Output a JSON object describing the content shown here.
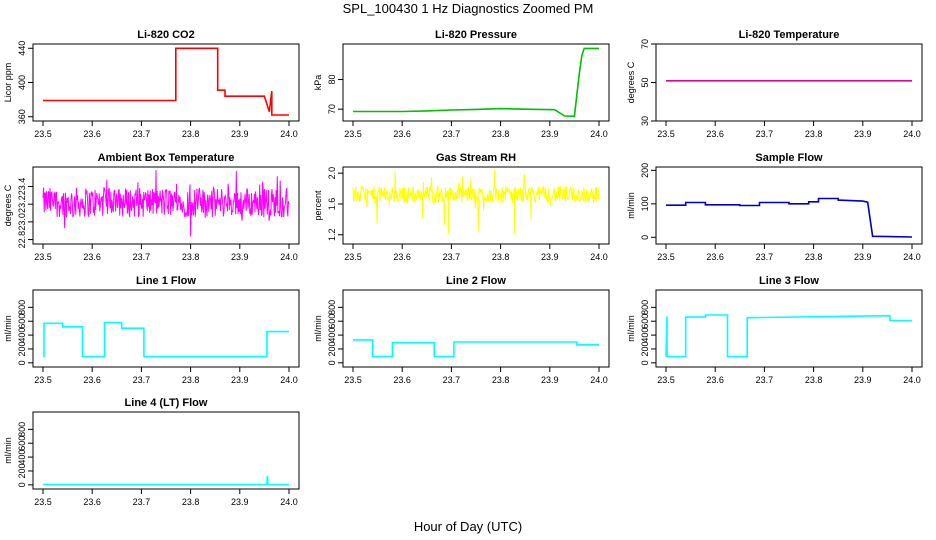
{
  "title": "SPL_100430  1 Hz Diagnostics Zoomed PM",
  "xlabel": "Hour of Day (UTC)",
  "chart_data": [
    {
      "type": "line",
      "title": "Li-820 CO2",
      "ylabel": "Licor ppm",
      "color": "#ff0000",
      "xlim": [
        23.5,
        24.0
      ],
      "xticks": [
        "23.5",
        "23.6",
        "23.7",
        "23.8",
        "23.9",
        "24.0"
      ],
      "ylim": [
        355,
        445
      ],
      "yticks": [
        "360",
        "400",
        "440"
      ],
      "yticks_val": [
        360,
        400,
        440
      ],
      "series": [
        {
          "x": [
            23.5,
            23.77,
            23.77,
            23.855,
            23.855,
            23.87,
            23.87,
            23.95,
            23.96,
            23.965,
            23.965,
            24.0
          ],
          "y": [
            379,
            379,
            440,
            440,
            391,
            391,
            384,
            384,
            366,
            390,
            362,
            362
          ]
        }
      ]
    },
    {
      "type": "line",
      "title": "Li-820 Pressure",
      "ylabel": "kPa",
      "color": "#00c000",
      "xlim": [
        23.5,
        24.0
      ],
      "xticks": [
        "23.5",
        "23.6",
        "23.7",
        "23.8",
        "23.9",
        "24.0"
      ],
      "ylim": [
        66,
        92
      ],
      "yticks": [
        "70",
        "80"
      ],
      "yticks_val": [
        70,
        80
      ],
      "series": [
        {
          "x": [
            23.5,
            23.6,
            23.65,
            23.7,
            23.75,
            23.8,
            23.85,
            23.91,
            23.93,
            23.95,
            23.955,
            23.96,
            23.965,
            23.97,
            24.0
          ],
          "y": [
            69.2,
            69.2,
            69.4,
            69.7,
            69.9,
            70.2,
            70.0,
            69.8,
            67.7,
            67.6,
            75,
            82,
            88,
            90.5,
            90.5
          ]
        }
      ]
    },
    {
      "type": "line",
      "title": "Li-820 Temperature",
      "ylabel": "degrees C",
      "color": "#e000a0",
      "xlim": [
        23.5,
        24.0
      ],
      "xticks": [
        "23.5",
        "23.6",
        "23.7",
        "23.8",
        "23.9",
        "24.0"
      ],
      "ylim": [
        30,
        70
      ],
      "yticks": [
        "30",
        "50",
        "70"
      ],
      "yticks_val": [
        30,
        50,
        70
      ],
      "series": [
        {
          "x": [
            23.5,
            24.0
          ],
          "y": [
            50.9,
            50.9
          ]
        }
      ]
    },
    {
      "type": "line",
      "title": "Ambient Box Temperature",
      "ylabel": "degrees C",
      "color": "#ff00ff",
      "noise": true,
      "xlim": [
        23.5,
        24.0
      ],
      "xticks": [
        "23.5",
        "23.6",
        "23.7",
        "23.8",
        "23.9",
        "24.0"
      ],
      "ylim": [
        22.75,
        23.62
      ],
      "yticks": [
        "22.8",
        "23.0",
        "23.2",
        "23.4"
      ],
      "yticks_val": [
        22.8,
        23.0,
        23.2,
        23.4
      ],
      "series": [
        {
          "center": 23.22,
          "spread": 0.17,
          "min": 22.79,
          "max": 23.6
        }
      ]
    },
    {
      "type": "line",
      "title": "Gas Stream RH",
      "ylabel": "percent",
      "color": "#ffff00",
      "noise": true,
      "xlim": [
        23.5,
        24.0
      ],
      "xticks": [
        "23.5",
        "23.6",
        "23.7",
        "23.8",
        "23.9",
        "24.0"
      ],
      "ylim": [
        1.08,
        2.08
      ],
      "yticks": [
        "1.2",
        "1.6",
        "2.0"
      ],
      "yticks_val": [
        1.2,
        1.6,
        2.0
      ],
      "series": [
        {
          "center": 1.72,
          "spread": 0.11,
          "min": 1.17,
          "max": 2.05
        }
      ]
    },
    {
      "type": "line",
      "title": "Sample Flow",
      "ylabel": "ml/min",
      "color": "#0000c0",
      "xlim": [
        23.5,
        24.0
      ],
      "xticks": [
        "23.5",
        "23.6",
        "23.7",
        "23.8",
        "23.9",
        "24.0"
      ],
      "ylim": [
        -20,
        210
      ],
      "yticks": [
        "0",
        "100",
        "200"
      ],
      "yticks_val": [
        0,
        100,
        200
      ],
      "series": [
        {
          "x": [
            23.5,
            23.54,
            23.54,
            23.58,
            23.58,
            23.65,
            23.65,
            23.69,
            23.69,
            23.75,
            23.75,
            23.79,
            23.79,
            23.81,
            23.81,
            23.85,
            23.85,
            23.9,
            23.91,
            23.92,
            24.0
          ],
          "y": [
            96,
            96,
            104,
            104,
            97,
            97,
            95,
            95,
            104,
            104,
            100,
            100,
            106,
            106,
            116,
            116,
            111,
            108,
            105,
            3,
            1
          ]
        }
      ]
    },
    {
      "type": "line",
      "title": "Line 1 Flow",
      "ylabel": "ml/min",
      "color": "#00ffff",
      "xlim": [
        23.5,
        24.0
      ],
      "xticks": [
        "23.5",
        "23.6",
        "23.7",
        "23.8",
        "23.9",
        "24.0"
      ],
      "ylim": [
        -60,
        1050
      ],
      "yticks": [
        "0",
        "200",
        "400",
        "600",
        "800"
      ],
      "yticks_val": [
        0,
        200,
        400,
        600,
        800
      ],
      "series": [
        {
          "x": [
            23.5,
            23.502,
            23.502,
            23.54,
            23.54,
            23.58,
            23.58,
            23.625,
            23.625,
            23.66,
            23.66,
            23.705,
            23.705,
            23.955,
            23.955,
            24.0
          ],
          "y": [
            90,
            90,
            570,
            570,
            520,
            520,
            90,
            90,
            580,
            580,
            500,
            500,
            90,
            90,
            450,
            450
          ]
        }
      ]
    },
    {
      "type": "line",
      "title": "Line 2 Flow",
      "ylabel": "ml/min",
      "color": "#00ffff",
      "xlim": [
        23.5,
        24.0
      ],
      "xticks": [
        "23.5",
        "23.6",
        "23.7",
        "23.8",
        "23.9",
        "24.0"
      ],
      "ylim": [
        -60,
        1050
      ],
      "yticks": [
        "0",
        "200",
        "400",
        "600",
        "800"
      ],
      "yticks_val": [
        0,
        200,
        400,
        600,
        800
      ],
      "series": [
        {
          "x": [
            23.5,
            23.54,
            23.54,
            23.58,
            23.58,
            23.665,
            23.665,
            23.705,
            23.705,
            23.955,
            23.955,
            24.0
          ],
          "y": [
            330,
            330,
            90,
            90,
            290,
            290,
            90,
            90,
            300,
            300,
            260,
            260
          ]
        }
      ]
    },
    {
      "type": "line",
      "title": "Line 3 Flow",
      "ylabel": "ml/min",
      "color": "#00ffff",
      "xlim": [
        23.5,
        24.0
      ],
      "xticks": [
        "23.5",
        "23.6",
        "23.7",
        "23.8",
        "23.9",
        "24.0"
      ],
      "ylim": [
        -60,
        1050
      ],
      "yticks": [
        "0",
        "200",
        "400",
        "600",
        "800"
      ],
      "yticks_val": [
        0,
        200,
        400,
        600,
        800
      ],
      "series": [
        {
          "x": [
            23.5,
            23.502,
            23.502,
            23.54,
            23.54,
            23.58,
            23.58,
            23.625,
            23.625,
            23.665,
            23.665,
            23.955,
            23.955,
            24.0
          ],
          "y": [
            90,
            670,
            90,
            90,
            660,
            660,
            690,
            690,
            90,
            90,
            650,
            680,
            610,
            610
          ]
        }
      ]
    },
    {
      "type": "line",
      "title": "Line 4 (LT) Flow",
      "ylabel": "ml/min",
      "color": "#00ffff",
      "xlim": [
        23.5,
        24.0
      ],
      "xticks": [
        "23.5",
        "23.6",
        "23.7",
        "23.8",
        "23.9",
        "24.0"
      ],
      "ylim": [
        -60,
        1050
      ],
      "yticks": [
        "0",
        "200",
        "400",
        "600",
        "800"
      ],
      "yticks_val": [
        0,
        200,
        400,
        600,
        800
      ],
      "series": [
        {
          "x": [
            23.5,
            23.955,
            23.956,
            23.957,
            23.958,
            24.0
          ],
          "y": [
            5,
            5,
            130,
            10,
            5,
            5
          ]
        }
      ]
    }
  ]
}
